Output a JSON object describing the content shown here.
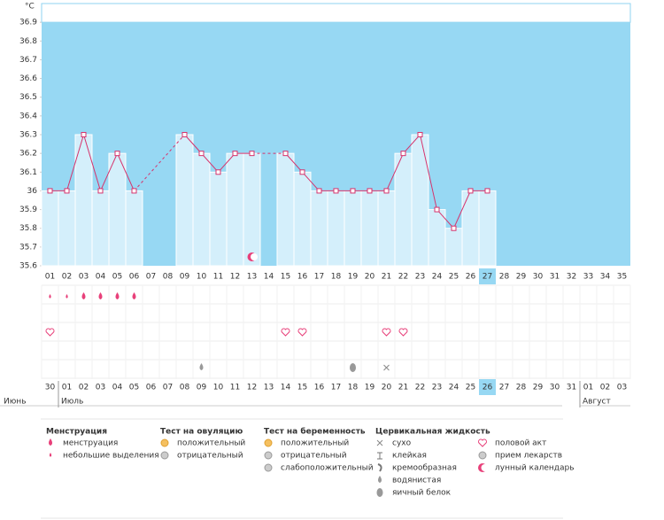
{
  "chart_data": {
    "type": "line",
    "y_unit": "°C",
    "ylim": [
      35.6,
      37.0
    ],
    "yticks": [
      35.6,
      35.7,
      35.8,
      35.9,
      {
        "value": 36,
        "label": "36"
      },
      36.1,
      36.2,
      36.3,
      36.4,
      36.5,
      36.6,
      36.7,
      36.8,
      36.9
    ],
    "x": [
      "01",
      "02",
      "03",
      "04",
      "05",
      "06",
      "07",
      "08",
      "09",
      "10",
      "11",
      "12",
      "13",
      "14",
      "15",
      "16",
      "17",
      "18",
      "19",
      "20",
      "21",
      "22",
      "23",
      "24",
      "25",
      "26",
      "27",
      "28",
      "29",
      "30",
      "31",
      "32",
      "33",
      "34",
      "35"
    ],
    "values": [
      36.0,
      36.0,
      36.3,
      36.0,
      36.2,
      36.0,
      null,
      null,
      36.3,
      36.2,
      36.1,
      36.2,
      36.2,
      null,
      36.2,
      36.1,
      36.0,
      36.0,
      36.0,
      36.0,
      36.0,
      36.2,
      36.3,
      35.9,
      35.8,
      36.0,
      36.0,
      null,
      null,
      null,
      null,
      null,
      null,
      null,
      null
    ],
    "color": "#d6336c",
    "bar_color": "#d4effb",
    "plot_color": "#97d8f3",
    "highlight_index": 26,
    "dates": [
      "30",
      "01",
      "02",
      "03",
      "04",
      "05",
      "06",
      "07",
      "08",
      "09",
      "10",
      "11",
      "12",
      "13",
      "14",
      "15",
      "16",
      "17",
      "18",
      "19",
      "20",
      "21",
      "22",
      "23",
      "24",
      "25",
      "26",
      "27",
      "28",
      "29",
      "30",
      "31",
      "01",
      "02",
      "03"
    ],
    "weekend": [
      true,
      false,
      false,
      false,
      false,
      false,
      true,
      true,
      false,
      false,
      false,
      false,
      false,
      true,
      true,
      false,
      false,
      false,
      false,
      false,
      true,
      true,
      false,
      false,
      false,
      false,
      false,
      true,
      true,
      false,
      false,
      false,
      false,
      false,
      true
    ],
    "weekend_color": "#d6336c",
    "months": [
      {
        "label": "Июнь",
        "index": 0
      },
      {
        "label": "Июль",
        "index": 1
      },
      {
        "label": "Август",
        "index": 32
      }
    ]
  },
  "legend": [
    {
      "title": "Менструация",
      "items": [
        "менструация",
        "небольшие выделения"
      ]
    },
    {
      "title": "Тест на овуляцию",
      "items": [
        "положительный",
        "отрицательный"
      ]
    },
    {
      "title": "Тест на беременность",
      "items": [
        "положительный",
        "отрицательный",
        "слабоположительный"
      ]
    },
    {
      "title": "Цервикальная жидкость",
      "items": [
        "сухо",
        "клейкая",
        "кремообразная",
        "водянистая",
        "яичный белок"
      ]
    },
    {
      "items": [
        "половой акт",
        "прием лекарств",
        "лунный календарь"
      ]
    }
  ]
}
